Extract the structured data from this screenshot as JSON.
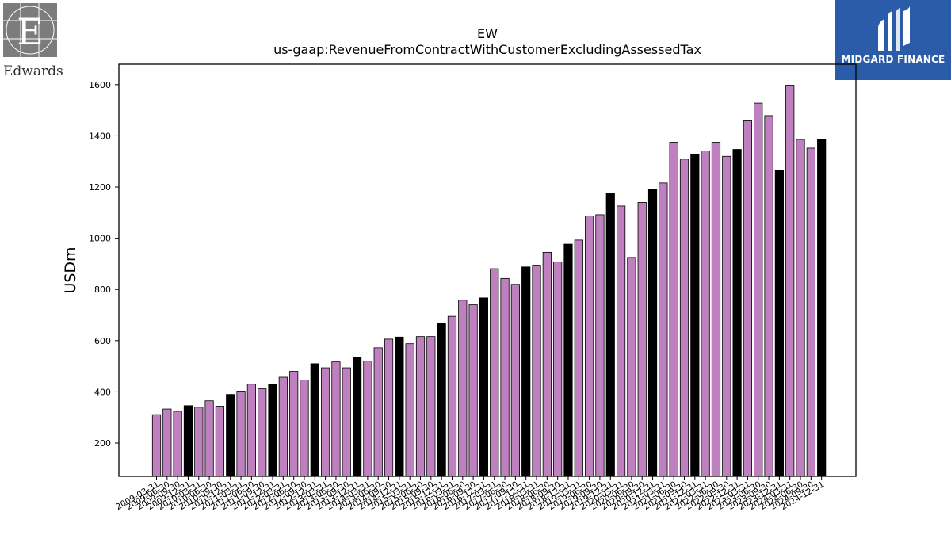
{
  "header": {
    "left_logo_text": "Edwards",
    "right_logo_text": "MIDGARD FINANCE"
  },
  "chart_data": {
    "type": "bar",
    "title": "EW",
    "subtitle": "us-gaap:RevenueFromContractWithCustomerExcludingAssessedTax",
    "xlabel": "",
    "ylabel": "USDm",
    "ylim": [
      70,
      1680
    ],
    "yticks": [
      200,
      400,
      600,
      800,
      1000,
      1200,
      1400,
      1600
    ],
    "grid": false,
    "colors": {
      "quarter": "#bf80bf",
      "year_end": "#000000",
      "edge": "#000000"
    },
    "categories": [
      "2009-03-31",
      "2009-06-30",
      "2009-09-30",
      "2009-12-31",
      "2010-03-31",
      "2010-06-30",
      "2010-09-30",
      "2010-12-31",
      "2011-03-31",
      "2011-06-30",
      "2011-09-30",
      "2011-12-31",
      "2012-03-31",
      "2012-06-30",
      "2012-09-30",
      "2012-12-31",
      "2013-03-31",
      "2013-06-30",
      "2013-09-30",
      "2013-12-31",
      "2014-03-31",
      "2014-06-30",
      "2014-09-30",
      "2014-12-31",
      "2015-03-31",
      "2015-06-30",
      "2015-09-30",
      "2015-12-31",
      "2016-03-31",
      "2016-06-30",
      "2016-09-30",
      "2016-12-31",
      "2017-03-31",
      "2017-06-30",
      "2017-09-30",
      "2017-12-31",
      "2018-03-31",
      "2018-06-30",
      "2018-09-30",
      "2018-12-31",
      "2019-03-31",
      "2019-06-30",
      "2019-09-30",
      "2019-12-31",
      "2020-03-31",
      "2020-06-30",
      "2020-09-30",
      "2020-12-31",
      "2021-03-31",
      "2021-06-30",
      "2021-09-30",
      "2021-12-31",
      "2022-03-31",
      "2022-06-30",
      "2022-09-30",
      "2022-12-31",
      "2023-03-31",
      "2023-06-30",
      "2023-09-30",
      "2023-12-31",
      "2024-03-31",
      "2024-06-30",
      "2024-09-30",
      "2024-12-31"
    ],
    "values": [
      311,
      333,
      324,
      346,
      340,
      365,
      344,
      390,
      403,
      430,
      412,
      430,
      457,
      480,
      446,
      510,
      494,
      517,
      494,
      535,
      520,
      572,
      606,
      614,
      588,
      616,
      616,
      668,
      695,
      758,
      740,
      767,
      881,
      843,
      820,
      888,
      895,
      945,
      907,
      977,
      993,
      1087,
      1092,
      1174,
      1126,
      925,
      1140,
      1191,
      1216,
      1375,
      1309,
      1329,
      1341,
      1375,
      1320,
      1347,
      1459,
      1528,
      1479,
      1266,
      1598,
      1386,
      1352,
      1386
    ],
    "year_end_flags": [
      0,
      0,
      0,
      1,
      0,
      0,
      0,
      1,
      0,
      0,
      0,
      1,
      0,
      0,
      0,
      1,
      0,
      0,
      0,
      1,
      0,
      0,
      0,
      1,
      0,
      0,
      0,
      1,
      0,
      0,
      0,
      1,
      0,
      0,
      0,
      1,
      0,
      0,
      0,
      1,
      0,
      0,
      0,
      1,
      0,
      0,
      0,
      1,
      0,
      0,
      0,
      1,
      0,
      0,
      0,
      1,
      0,
      0,
      0,
      1,
      0,
      0,
      0,
      1
    ]
  }
}
